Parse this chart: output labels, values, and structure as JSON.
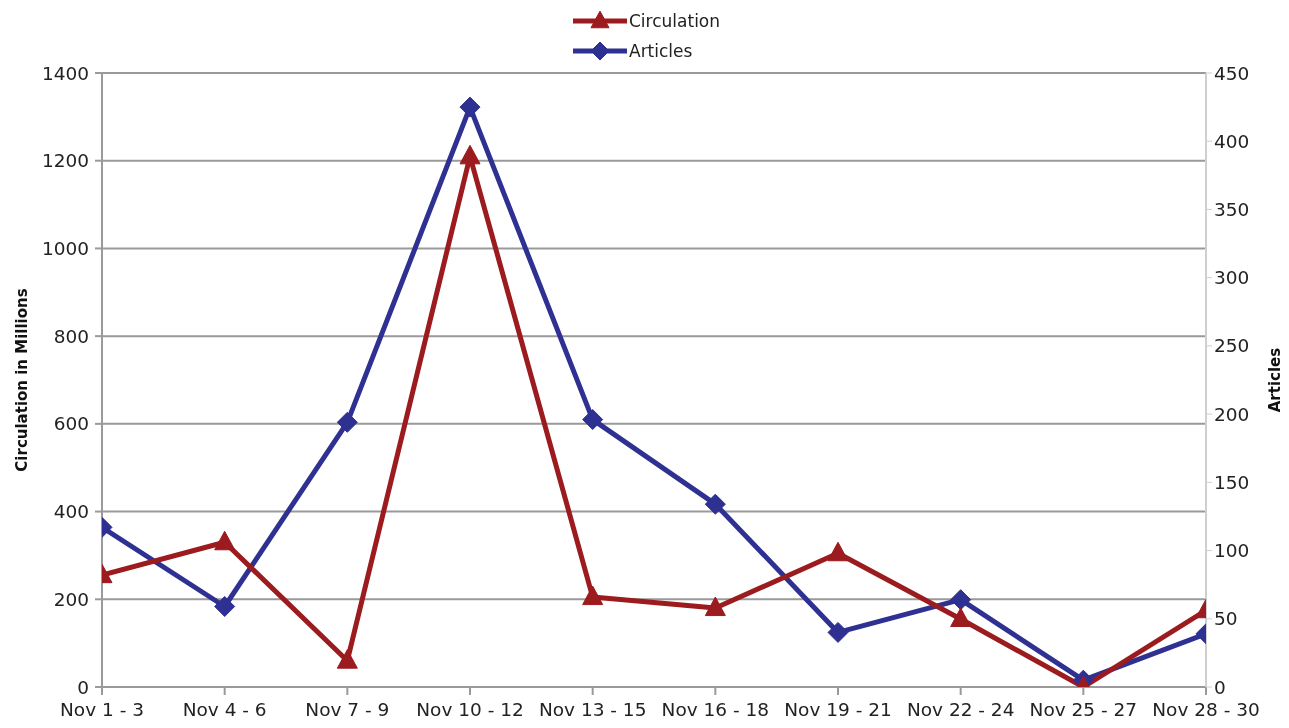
{
  "chart_data": {
    "type": "line",
    "categories": [
      "Nov 1 - 3",
      "Nov 4 - 6",
      "Nov 7 - 9",
      "Nov 10 - 12",
      "Nov 13 - 15",
      "Nov 16 - 18",
      "Nov 19 - 21",
      "Nov 22 - 24",
      "Nov 25 - 27",
      "Nov 28 - 30"
    ],
    "series": [
      {
        "name": "Circulation",
        "color": "#9b1b1e",
        "marker": "triangle",
        "values": [
          255,
          330,
          60,
          1210,
          205,
          180,
          305,
          155,
          0,
          175
        ]
      },
      {
        "name": "Articles",
        "color": "#2e3192",
        "marker": "diamond",
        "axis": "y2",
        "values": [
          117,
          59,
          194,
          425,
          196,
          134,
          40,
          64,
          5,
          39
        ]
      }
    ],
    "ylabel": "Circulation in Millions",
    "y2label": "Articles",
    "ylim": [
      0,
      1400
    ],
    "yticks": [
      0,
      200,
      400,
      600,
      800,
      1000,
      1200,
      1400
    ],
    "y2lim": [
      0,
      450
    ],
    "y2ticks": [
      0,
      50,
      100,
      150,
      200,
      250,
      300,
      350,
      400,
      450
    ],
    "grid": "y",
    "legend": "top",
    "line_style": "solid"
  }
}
